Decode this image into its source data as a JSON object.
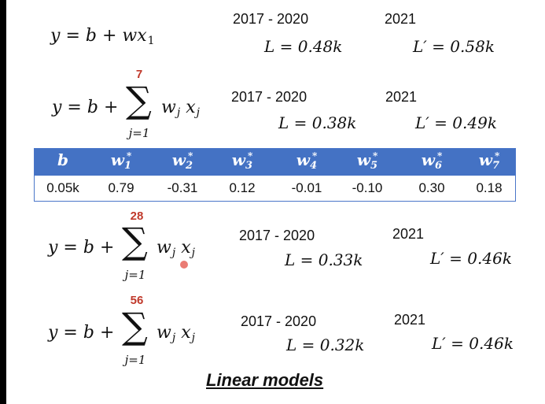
{
  "models": [
    {
      "equation": {
        "y": "y",
        "eq": "= ",
        "b": "b",
        "plus": " + ",
        "w": "w",
        "x": "x",
        "sub": "1"
      },
      "train_period": "2017 - 2020",
      "train_loss": "L = 0.48k",
      "test_period": "2021",
      "test_loss": "L′ = 0.58k"
    },
    {
      "sum_upper": "7",
      "sum_lower": "j=1",
      "train_period": "2017 - 2020",
      "train_loss": "L = 0.38k",
      "test_period": "2021",
      "test_loss": "L′ = 0.49k"
    },
    {
      "sum_upper": "28",
      "sum_lower": "j=1",
      "train_period": "2017 - 2020",
      "train_loss": "L = 0.33k",
      "test_period": "2021",
      "test_loss": "L′ = 0.46k"
    },
    {
      "sum_upper": "56",
      "sum_lower": "j=1",
      "train_period": "2017 - 2020",
      "train_loss": "L = 0.32k",
      "test_period": "2021",
      "test_loss": "L′ = 0.46k"
    }
  ],
  "sum_expr": {
    "lhs": "y = b + ",
    "sigma": "∑",
    "w": "w",
    "j": "j",
    "x": "x"
  },
  "weights_table": {
    "headers": [
      {
        "base": "b",
        "sub": "",
        "sup": ""
      },
      {
        "base": "w",
        "sub": "1",
        "sup": "*"
      },
      {
        "base": "w",
        "sub": "2",
        "sup": "*"
      },
      {
        "base": "w",
        "sub": "3",
        "sup": "*"
      },
      {
        "base": "w",
        "sub": "4",
        "sup": "*"
      },
      {
        "base": "w",
        "sub": "5",
        "sup": "*"
      },
      {
        "base": "w",
        "sub": "6",
        "sup": "*"
      },
      {
        "base": "w",
        "sub": "7",
        "sup": "*"
      }
    ],
    "values": [
      "0.05k",
      "0.79",
      "-0.31",
      "0.12",
      "-0.01",
      "-0.10",
      "0.30",
      "0.18"
    ],
    "header_bg": "#4472c4"
  },
  "caption": "Linear models"
}
